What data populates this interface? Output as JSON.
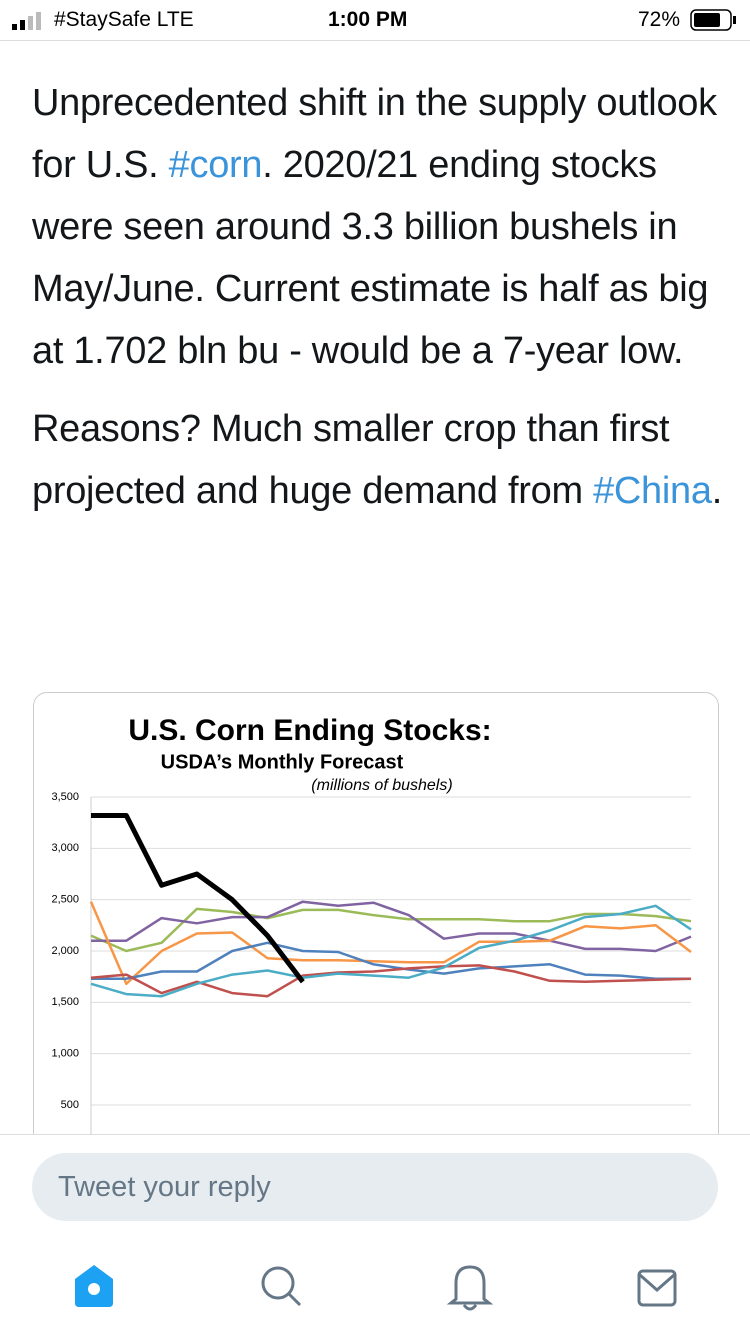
{
  "status_bar": {
    "carrier": "#StaySafe  LTE",
    "time": "1:00 PM",
    "battery": "72%"
  },
  "tweet": {
    "paragraphs": [
      [
        {
          "text": "Unprecedented shift in the supply outlook for U.S. "
        },
        {
          "text": "#corn",
          "link": true
        },
        {
          "text": ". 2020/21 ending stocks were seen around 3.3 billion bushels in May/June. Current estimate is half as big at 1.702 bln bu - would be a 7-year low."
        }
      ],
      [
        {
          "text": "Reasons? Much smaller crop than first projected and huge demand from "
        },
        {
          "text": "#China",
          "link": true
        },
        {
          "text": "."
        }
      ]
    ]
  },
  "chart_data": {
    "type": "line",
    "title": "U.S. Corn Ending Stocks:",
    "subtitle": "USDA’s Monthly Forecast",
    "unit_note": "(millions of bushels)",
    "categories": [
      null,
      null,
      null,
      null,
      null,
      null,
      null,
      null,
      null,
      null,
      null,
      null,
      null,
      null,
      null,
      null,
      null,
      null
    ],
    "ylim": [
      0,
      3500
    ],
    "yticks": [
      {
        "value": 3500,
        "label": "3,500"
      },
      {
        "value": 3000,
        "label": "3,000"
      },
      {
        "value": 2500,
        "label": "2,500"
      },
      {
        "value": 2000,
        "label": "2,000"
      },
      {
        "value": 1500,
        "label": "1,500"
      },
      {
        "value": 1000,
        "label": "1,000"
      },
      500
    ],
    "grid": true,
    "series": [
      {
        "color": "#9bbb59",
        "values": [
          2150,
          2000,
          2080,
          2410,
          2380,
          2320,
          2400,
          2400,
          2350,
          2310,
          2310,
          2310,
          2290,
          2290,
          2360,
          2360,
          2340,
          2290
        ]
      },
      {
        "color": "#8064a2",
        "values": [
          2100,
          2100,
          2320,
          2270,
          2330,
          2330,
          2480,
          2440,
          2470,
          2350,
          2120,
          2170,
          2170,
          2100,
          2020,
          2020,
          2000,
          2140
        ]
      },
      {
        "color": "#f79646",
        "values": [
          2480,
          1680,
          2000,
          2170,
          2180,
          1930,
          1910,
          1910,
          1900,
          1890,
          1890,
          2090,
          2090,
          2100,
          2240,
          2220,
          2250,
          1990
        ]
      },
      {
        "color": "#4f81bd",
        "values": [
          1730,
          1730,
          1800,
          1800,
          2000,
          2080,
          2000,
          1990,
          1870,
          1820,
          1780,
          1830,
          1850,
          1870,
          1770,
          1760,
          1730,
          1730
        ]
      },
      {
        "color": "#c0504d",
        "values": [
          1740,
          1770,
          1590,
          1700,
          1590,
          1560,
          1760,
          1790,
          1800,
          1830,
          1850,
          1860,
          1800,
          1710,
          1700,
          1710,
          1720,
          1730
        ]
      },
      {
        "color": "#4bacc6",
        "values": [
          1680,
          1580,
          1560,
          1680,
          1770,
          1810,
          1740,
          1780,
          1760,
          1740,
          1840,
          2030,
          2100,
          2200,
          2330,
          2360,
          2440,
          2210
        ]
      },
      {
        "color": "#000000",
        "values": [
          3320,
          3320,
          2640,
          2750,
          2500,
          2150,
          1700,
          null,
          null,
          null,
          null,
          null,
          null,
          null,
          null,
          null,
          null,
          null
        ]
      }
    ]
  },
  "reply": {
    "placeholder": "Tweet your reply"
  }
}
